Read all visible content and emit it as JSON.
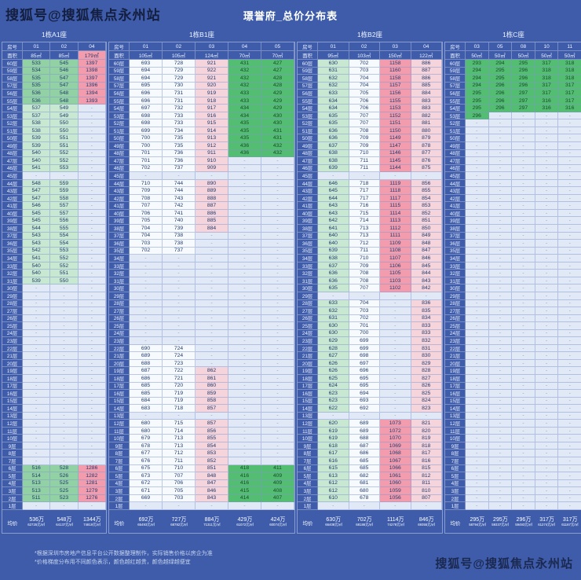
{
  "title": "璟誉府_总价分布表",
  "watermark_top": "搜狐号@搜狐焦点永州站",
  "watermark_bottom": "搜狐号@搜狐焦点永州站",
  "labels": {
    "room": "房号",
    "area": "面积",
    "avg": "均价"
  },
  "footnotes": [
    "*根据深圳市房地产信息平台公开数据整理制作，实际销售价格以房企为准",
    "*价格梯度分布用不同颜色表示，颜色越红越贵，颜色越绿越便宜"
  ],
  "colors": {
    "bg": "#3e5caa",
    "green_s": "#53bd72",
    "green_m": "#92d1a3",
    "green_p": "#c9e8d2",
    "pink_s": "#f39cae",
    "pink_p": "#f6d4db",
    "white_c": "#f7fafd",
    "empty_c": "#e2e9f6",
    "cell_text": "#213c6e"
  },
  "floors": [
    "60层",
    "59层",
    "58层",
    "57层",
    "56层",
    "55层",
    "54层",
    "53层",
    "52层",
    "51层",
    "50层",
    "49层",
    "48层",
    "47层",
    "46层",
    "45层",
    "44层",
    "43层",
    "42层",
    "41层",
    "40层",
    "39层",
    "38层",
    "37层",
    "36层",
    "35层",
    "34层",
    "33层",
    "32层",
    "31层",
    "30层",
    "29层",
    "28层",
    "27层",
    "26层",
    "25层",
    "24层",
    "23层",
    "22层",
    "21层",
    "20层",
    "19层",
    "18层",
    "17层",
    "16层",
    "15层",
    "14层",
    "13层",
    "12层",
    "11层",
    "10层",
    "9层",
    "8层",
    "7层",
    "6层",
    "5层",
    "4层",
    "3层",
    "2层",
    "1层"
  ],
  "sections": [
    {
      "name": "1栋A1座",
      "columns": [
        "01",
        "02",
        "04"
      ],
      "areas": [
        "85㎡",
        "85㎡",
        "179㎡"
      ],
      "area_tones": "bbk",
      "rows": [
        "533,545,1397|mmk",
        "534,546,1398|mmk",
        "535,547,1397|mmk",
        "535,547,1396|mmk",
        "536,548,1394|mmk",
        "536,548,1393|mmk",
        "537,549,-|ppe",
        "537,549,-|ppe",
        "538,550,-|ppe",
        "538,550,-|ppe",
        "539,551,-|ppe",
        "539,551,-|ppe",
        "540,552,-|ppe",
        "540,552,-|ppe",
        "541,553,-|ppe",
        "-,-,-|eee",
        "548,559,-|ppe",
        "547,559,-|ppe",
        "547,558,-|ppe",
        "546,557,-|ppe",
        "545,557,-|ppe",
        "545,556,-|ppe",
        "544,555,-|ppe",
        "543,554,-|ppe",
        "543,554,-|ppe",
        "542,553,-|ppe",
        "541,552,-|ppe",
        "540,552,-|ppe",
        "540,551,-|ppe",
        "539,550,-|ppe",
        "-,-,-|eee",
        "-,-,-|eee",
        "-,-,-|eee",
        "-,-,-|eee",
        "-,-,-|eee",
        "-,-,-|eee",
        "-,-,-|eee",
        "-,-,-|eee",
        "-,-,-|eee",
        "-,-,-|eee",
        "-,-,-|eee",
        "-,-,-|eee",
        "-,-,-|eee",
        "-,-,-|eee",
        "-,-,-|eee",
        "-,-,-|eee",
        "-,-,-|eee",
        "-,-,-|eee",
        "-,-,-|eee",
        "-,-,-|eee",
        "-,-,-|eee",
        "-,-,-|eee",
        "-,-,-|eee",
        "-,-,-|eee",
        "516,528,1286|mmk",
        "514,526,1282|mmk",
        "513,525,1281|mmk",
        "513,525,1279|mmk",
        "511,523,1276|mmk",
        "-,-,-|eee"
      ],
      "avg": [
        [
          "536万",
          "62725元/㎡"
        ],
        [
          "548万",
          "64137元/㎡"
        ],
        [
          "1344万",
          "74819元/㎡"
        ]
      ]
    },
    {
      "name": "1栋B1座",
      "columns": [
        "01",
        "02",
        "03",
        "04",
        "05"
      ],
      "areas": [
        "105㎡",
        "105㎡",
        "124㎡",
        "70㎡",
        "70㎡"
      ],
      "area_tones": "bbbbb",
      "rows": [
        "693,728,921,431,427|wwqgg",
        "694,729,922,432,427|wwqgg",
        "694,729,921,432,428|wwqgg",
        "695,730,920,432,428|wwqgg",
        "696,731,919,433,429|wwqgg",
        "696,731,918,433,429|wwqgg",
        "697,732,917,434,429|wwqgg",
        "698,733,916,434,430|wwqgg",
        "698,733,915,435,430|wwqgg",
        "699,734,914,435,431|wwqgg",
        "700,735,913,435,431|wwqgg",
        "700,735,912,436,432|wwqgg",
        "701,736,911,436,432|wwqgg",
        "701,736,910,-,-|wwqee",
        "702,737,909,-,-|wwqee",
        "-,-,-,-,-|eeeee",
        "710,744,890,-,-|wwqee",
        "709,744,889,-,-|wwqee",
        "708,743,888,-,-|wwqee",
        "707,742,887,-,-|wwqee",
        "706,741,886,-,-|wwqee",
        "705,740,885,-,-|wwqee",
        "704,739,884,-,-|wwqee",
        "704,738,-,-,-|wweee",
        "703,738,-,-,-|wweee",
        "702,737,-,-,-|wweee",
        "-,-,-,-,-|eeeee",
        "-,-,-,-,-|eeeee",
        "-,-,-,-,-|eeeee",
        "-,-,-,-,-|eeeee",
        "-,-,-,-,-|eeeee",
        "-,-,-,-,-|eeeee",
        "-,-,-,-,-|eeeee",
        "-,-,-,-,-|eeeee",
        "-,-,-,-,-|eeeee",
        "-,-,-,-,-|eeeee",
        "-,-,-,-,-|eeeee",
        "-,-,-,-,-|eeeee",
        "690,724,-,-,-|wweee",
        "689,724,-,-,-|wweee",
        "688,723,-,-,-|wweee",
        "687,722,862,-,-|wwqee",
        "686,721,861,-,-|wwqee",
        "685,720,860,-,-|wwqee",
        "685,719,859,-,-|wwqee",
        "684,719,858,-,-|wwqee",
        "683,718,857,-,-|wwqee",
        "-,-,-,-,-|eeeee",
        "680,715,857,-,-|wwqee",
        "680,714,856,-,-|wwqee",
        "679,713,855,-,-|wwqee",
        "678,713,854,-,-|wwqee",
        "677,712,853,-,-|wwqee",
        "676,711,852,-,-|wwqee",
        "675,710,851,418,411|wwqgg",
        "673,707,848,416,409|wwqgg",
        "672,706,847,416,409|wwqgg",
        "671,705,846,415,408|wwqgg",
        "669,703,843,414,407|wwqgg",
        "-,-,-,-,-|eeeee"
      ],
      "avg": [
        [
          "692万",
          "65493元/㎡"
        ],
        [
          "727万",
          "68782元/㎡"
        ],
        [
          "884万",
          "71311元/㎡"
        ],
        [
          "429万",
          "61072元/㎡"
        ],
        [
          "424万",
          "60074元/㎡"
        ]
      ]
    },
    {
      "name": "1栋B2座",
      "columns": [
        "01",
        "02",
        "03",
        "04"
      ],
      "areas": [
        "95㎡",
        "103㎡",
        "150㎡",
        "122㎡"
      ],
      "area_tones": "bbbb",
      "rows": [
        "630,702,1158,886|pwkq",
        "631,703,1160,887|pwkq",
        "632,704,1158,886|pwkq",
        "632,704,1157,885|pwkq",
        "633,705,1156,884|pwkq",
        "634,706,1155,883|pwkq",
        "634,706,1153,883|pwkq",
        "635,707,1152,882|pwkq",
        "635,707,1151,881|pwkq",
        "636,708,1150,880|pwkq",
        "636,709,1149,879|pwkq",
        "637,709,1147,878|pwkq",
        "638,710,1146,877|pwkq",
        "638,711,1145,876|pwkq",
        "639,711,1144,875|pwkq",
        "-,-,-,-|eeee",
        "646,718,1119,856|pwkq",
        "645,717,1118,855|pwkq",
        "644,717,1117,854|pwkq",
        "643,716,1115,853|pwkq",
        "643,715,1114,852|pwkq",
        "642,714,1113,851|pwkq",
        "641,713,1112,850|pwkq",
        "640,713,1111,849|pwkq",
        "640,712,1109,848|pwkq",
        "639,711,1108,847|pwkq",
        "638,710,1107,846|pwkq",
        "637,709,1106,845|pwkq",
        "636,708,1105,844|pwkq",
        "636,708,1103,843|pwkq",
        "635,707,1102,842|pwkq",
        "-,-,-,-|eeee",
        "633,704,-,836|pweq",
        "632,703,-,835|pweq",
        "631,702,-,834|pweq",
        "630,701,-,833|pweq",
        "630,700,-,833|pweq",
        "629,699,-,832|pweq",
        "628,699,-,831|pweq",
        "627,698,-,830|pweq",
        "626,697,-,829|pweq",
        "626,696,-,828|pweq",
        "625,695,-,827|pweq",
        "624,695,-,826|pweq",
        "623,694,-,825|pweq",
        "623,693,-,824|pweq",
        "622,692,-,823|pweq",
        "-,-,-,-|eeee",
        "620,689,1073,821|pwkq",
        "619,689,1072,820|pwkq",
        "619,688,1070,819|pwkq",
        "618,687,1069,818|pwkq",
        "617,686,1068,817|pwkq",
        "616,685,1067,816|pwkq",
        "615,685,1066,815|pwkq",
        "613,682,1061,812|pwkq",
        "612,681,1060,811|pwkq",
        "612,680,1059,810|pwkq",
        "610,678,1056,807|pwkq",
        "-,-,-,-|eeee"
      ],
      "avg": [
        [
          "630万",
          "66408元/㎡"
        ],
        [
          "702万",
          "68186元/㎡"
        ],
        [
          "1114万",
          "74278元/㎡"
        ],
        [
          "846万",
          "69355元/㎡"
        ]
      ]
    },
    {
      "name": "1栋C座",
      "columns": [
        "03",
        "05",
        "08",
        "10",
        "11"
      ],
      "areas": [
        "50㎡",
        "50㎡",
        "50㎡",
        "50㎡",
        "50㎡"
      ],
      "area_tones": "bbbbb",
      "rows": [
        "293,294,295,317,318|ggggg",
        "294,295,296,318,318|ggggg",
        "294,295,296,318,318|ggggg",
        "294,296,296,317,317|ggggg",
        "295,296,297,317,317|ggggg",
        "295,296,297,316,317|ggggg",
        "295,296,297,316,316|ggggg",
        "296,-,-,-,-|geeee",
        "-,-,-,-,-|eeeee",
        "-,-,-,-,-|eeeee",
        "-,-,-,-,-|eeeee",
        "-,-,-,-,-|eeeee",
        "-,-,-,-,-|eeeee",
        "-,-,-,-,-|eeeee",
        "-,-,-,-,-|eeeee",
        "-,-,-,-,-|eeeee",
        "-,-,-,-,-|eeeee",
        "-,-,-,-,-|eeeee",
        "-,-,-,-,-|eeeee",
        "-,-,-,-,-|eeeee",
        "-,-,-,-,-|eeeee",
        "-,-,-,-,-|eeeee",
        "-,-,-,-,-|eeeee",
        "-,-,-,-,-|eeeee",
        "-,-,-,-,-|eeeee",
        "-,-,-,-,-|eeeee",
        "-,-,-,-,-|eeeee",
        "-,-,-,-,-|eeeee",
        "-,-,-,-,-|eeeee",
        "-,-,-,-,-|eeeee",
        "-,-,-,-,-|eeeee",
        "-,-,-,-,-|eeeee",
        "-,-,-,-,-|eeeee",
        "-,-,-,-,-|eeeee",
        "-,-,-,-,-|eeeee",
        "-,-,-,-,-|eeeee",
        "-,-,-,-,-|eeeee",
        "-,-,-,-,-|eeeee",
        "-,-,-,-,-|eeeee",
        "-,-,-,-,-|eeeee",
        "-,-,-,-,-|eeeee",
        "-,-,-,-,-|eeeee",
        "-,-,-,-,-|eeeee",
        "-,-,-,-,-|eeeee",
        "-,-,-,-,-|eeeee",
        "-,-,-,-,-|eeeee",
        "-,-,-,-,-|eeeee",
        "-,-,-,-,-|eeeee",
        "-,-,-,-,-|eeeee",
        "-,-,-,-,-|eeeee",
        "-,-,-,-,-|eeeee",
        "-,-,-,-,-|eeeee",
        "-,-,-,-,-|eeeee",
        "-,-,-,-,-|eeeee",
        "-,-,-,-,-|eeeee",
        "-,-,-,-,-|eeeee",
        "-,-,-,-,-|eeeee",
        "-,-,-,-,-|eeeee",
        "-,-,-,-,-|eeeee",
        "-,-,-,-,-|eeeee"
      ],
      "avg": [
        [
          "295万",
          "58794元/㎡"
        ],
        [
          "295万",
          "59337元/㎡"
        ],
        [
          "296万",
          "59493元/㎡"
        ],
        [
          "317万",
          "61274元/㎡"
        ],
        [
          "317万",
          "61167元/㎡"
        ]
      ]
    }
  ]
}
